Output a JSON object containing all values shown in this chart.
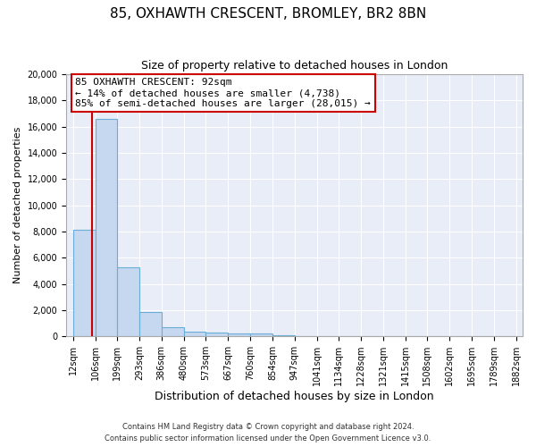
{
  "title": "85, OXHAWTH CRESCENT, BROMLEY, BR2 8BN",
  "subtitle": "Size of property relative to detached houses in London",
  "xlabel": "Distribution of detached houses by size in London",
  "ylabel": "Number of detached properties",
  "footer_line1": "Contains HM Land Registry data © Crown copyright and database right 2024.",
  "footer_line2": "Contains public sector information licensed under the Open Government Licence v3.0.",
  "annotation_line0": "85 OXHAWTH CRESCENT: 92sqm",
  "annotation_line1": "← 14% of detached houses are smaller (4,738)",
  "annotation_line2": "85% of semi-detached houses are larger (28,015) →",
  "property_size": 92,
  "bin_edges": [
    12,
    106,
    199,
    293,
    386,
    480,
    573,
    667,
    760,
    854,
    947,
    1041,
    1134,
    1228,
    1321,
    1415,
    1508,
    1602,
    1695,
    1789,
    1882
  ],
  "bar_heights": [
    8100,
    16600,
    5300,
    1850,
    700,
    350,
    300,
    200,
    200,
    50,
    20,
    10,
    5,
    5,
    5,
    5,
    5,
    5,
    5,
    5
  ],
  "bar_color": "#c5d8ef",
  "bar_edge_color": "#6aaed6",
  "vline_color": "#cc0000",
  "annotation_box_edge_color": "#cc0000",
  "background_color": "#e8edf8",
  "ylim": [
    0,
    20000
  ],
  "yticks": [
    0,
    2000,
    4000,
    6000,
    8000,
    10000,
    12000,
    14000,
    16000,
    18000,
    20000
  ],
  "grid_color": "#ffffff",
  "title_fontsize": 11,
  "subtitle_fontsize": 9,
  "annotation_fontsize": 8,
  "xlabel_fontsize": 9,
  "ylabel_fontsize": 8,
  "tick_fontsize": 7
}
